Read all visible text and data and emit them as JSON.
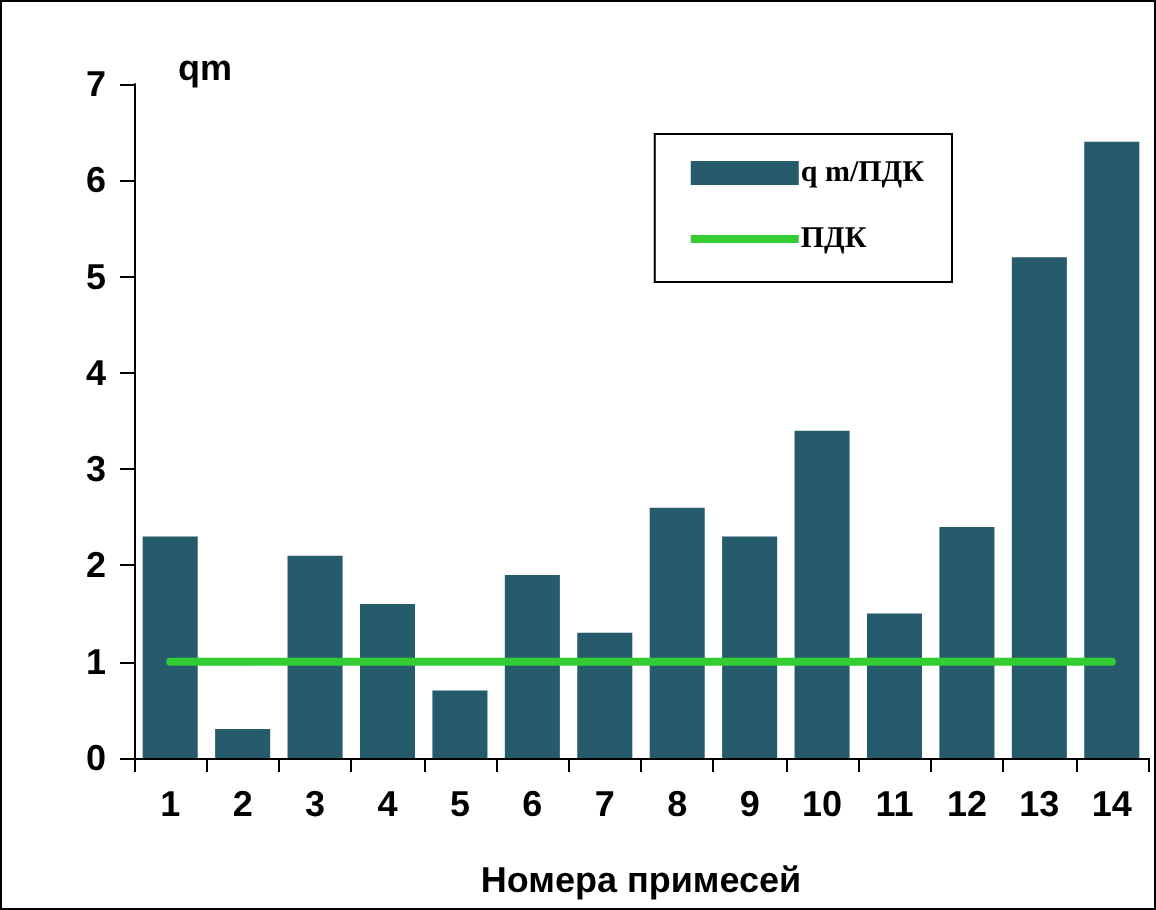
{
  "chart_data": {
    "type": "bar",
    "xlabel": "Номера примесей",
    "ylabel": "qm",
    "categories": [
      "1",
      "2",
      "3",
      "4",
      "5",
      "6",
      "7",
      "8",
      "9",
      "10",
      "11",
      "12",
      "13",
      "14"
    ],
    "series": [
      {
        "name": "q m/ПДК",
        "color": "#255b6b",
        "values": [
          2.3,
          0.3,
          2.1,
          1.6,
          0.7,
          1.9,
          1.3,
          2.6,
          2.3,
          3.4,
          1.5,
          2.4,
          5.2,
          6.4
        ]
      },
      {
        "name": "ПДК",
        "type": "line",
        "color": "#33cc33",
        "values": [
          1,
          1,
          1,
          1,
          1,
          1,
          1,
          1,
          1,
          1,
          1,
          1,
          1,
          1
        ]
      }
    ],
    "ylim": [
      0,
      7
    ],
    "yticks": [
      0,
      1,
      2,
      3,
      4,
      5,
      6,
      7
    ],
    "grid": false,
    "legend": "top right",
    "marker": "none",
    "line_style": "solid"
  }
}
